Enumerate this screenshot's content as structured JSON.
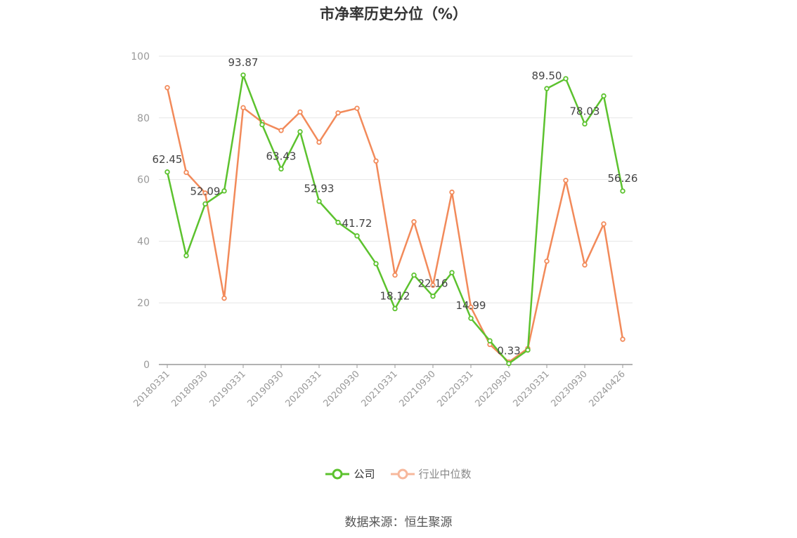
{
  "title": "市净率历史分位（%）",
  "source": "数据来源：恒生聚源",
  "colors": {
    "company": "#5cc22e",
    "industry": "#f28a5a",
    "grid": "#e6e6e6",
    "axis": "#999999"
  },
  "chart_data": {
    "type": "line",
    "title": "市净率历史分位（%）",
    "xlabel": "",
    "ylabel": "",
    "ylim": [
      0,
      100
    ],
    "yticks": [
      0,
      20,
      40,
      60,
      80,
      100
    ],
    "grid": true,
    "legend_placement": "bottom",
    "x": [
      "20180331",
      "20180630",
      "20180930",
      "20181231",
      "20190331",
      "20190630",
      "20190930",
      "20191231",
      "20200331",
      "20200630",
      "20200930",
      "20201231",
      "20210331",
      "20210630",
      "20210930",
      "20211231",
      "20220331",
      "20220630",
      "20220930",
      "20221231",
      "20230331",
      "20230630",
      "20230930",
      "20231231",
      "20240426"
    ],
    "xtick_labels": [
      "20180331",
      "20180930",
      "20190331",
      "20190930",
      "20200331",
      "20200930",
      "20210331",
      "20210930",
      "20220331",
      "20220930",
      "20230331",
      "20230930",
      "20240426"
    ],
    "series": [
      {
        "name": "公司",
        "color": "#5cc22e",
        "values": [
          62.45,
          35.3,
          52.09,
          56.3,
          93.87,
          77.8,
          63.43,
          75.5,
          52.93,
          46.1,
          41.72,
          32.7,
          18.12,
          29.0,
          22.16,
          29.8,
          14.99,
          7.7,
          0.33,
          4.7,
          89.5,
          92.7,
          78.03,
          87.1,
          56.26
        ],
        "data_labels": {
          "0": "62.45",
          "2": "52.09",
          "4": "93.87",
          "6": "63.43",
          "8": "52.93",
          "10": "41.72",
          "12": "18.12",
          "14": "22.16",
          "16": "14.99",
          "18": "0.33",
          "20": "89.50",
          "22": "78.03",
          "24": "56.26"
        }
      },
      {
        "name": "行业中位数",
        "color": "#f28a5a",
        "values": [
          89.8,
          62.3,
          55.6,
          21.5,
          83.3,
          78.6,
          75.9,
          81.9,
          72.1,
          81.6,
          83.1,
          66.0,
          29.0,
          46.3,
          25.7,
          55.9,
          18.6,
          6.5,
          0.8,
          5.2,
          33.5,
          59.7,
          32.3,
          45.6,
          8.2
        ]
      }
    ]
  }
}
